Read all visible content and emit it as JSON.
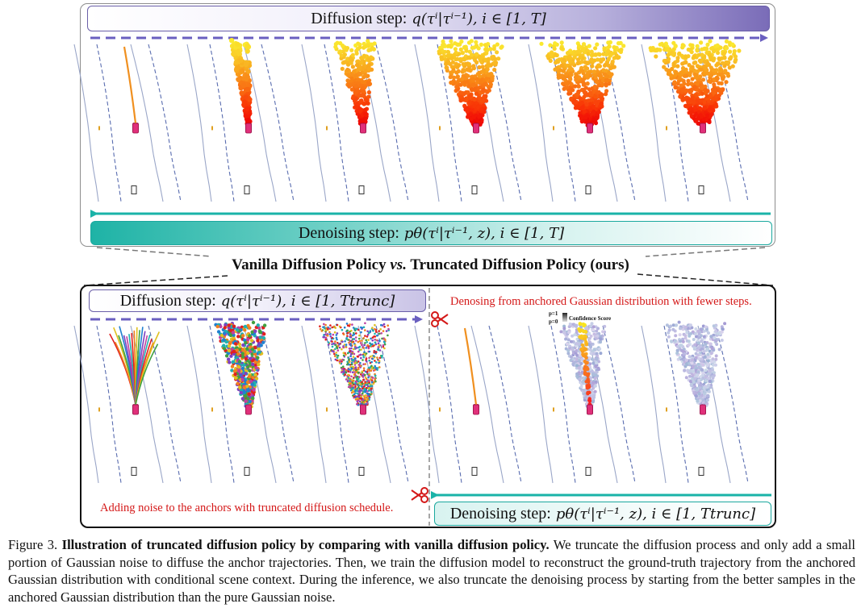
{
  "title": "Vanilla Diffusion Policy vs. Truncated Diffusion Policy (ours)",
  "title_parts": {
    "left": "Vanilla Diffusion Policy",
    "vs": "vs.",
    "right": "Truncated Diffusion Policy (ours)"
  },
  "top": {
    "diffusion_label": "Diffusion step:",
    "diffusion_formula": "q(τⁱ|τⁱ⁻¹), i ∈ [1, T]",
    "denoise_label": "Denoising step:",
    "denoise_formula": "pθ(τⁱ|τⁱ⁻¹, z), i ∈ [1, T]"
  },
  "bottom": {
    "diffusion_label": "Diffusion step:",
    "diffusion_formula": "q(τⁱ|τⁱ⁻¹), i ∈ [1, Ttrunc]",
    "denoise_label": "Denoising step:",
    "denoise_formula": "pθ(τⁱ|τⁱ⁻¹, z), i ∈ [1, Ttrunc]",
    "note_denoise": "Denosing from anchored Gaussian distribution with fewer steps.",
    "note_noise": "Adding noise to the anchors with truncated diffusion schedule.",
    "legend_p1": "p=1",
    "legend_p0": "p=0",
    "legend_title": "Confidence Score"
  },
  "caption": {
    "label": "Figure 3.",
    "bold": "Illustration of truncated diffusion policy by comparing with vanilla diffusion policy.",
    "text": "We truncate the diffusion process and only add a small portion of Gaussian noise to diffuse the anchor trajectories. Then, we train the diffusion model to reconstruct the ground-truth trajectory from the anchored Gaussian distribution with conditional scene context. During the inference, we also truncate the denoising process by starting from the better samples in the anchored Gaussian distribution than the pure Gaussian noise."
  },
  "colors": {
    "diffusion_arrow": "#6a5fc0",
    "denoise_arrow": "#1ab3a8",
    "note_red": "#d41818",
    "ego_vehicle": "#e0307a"
  }
}
